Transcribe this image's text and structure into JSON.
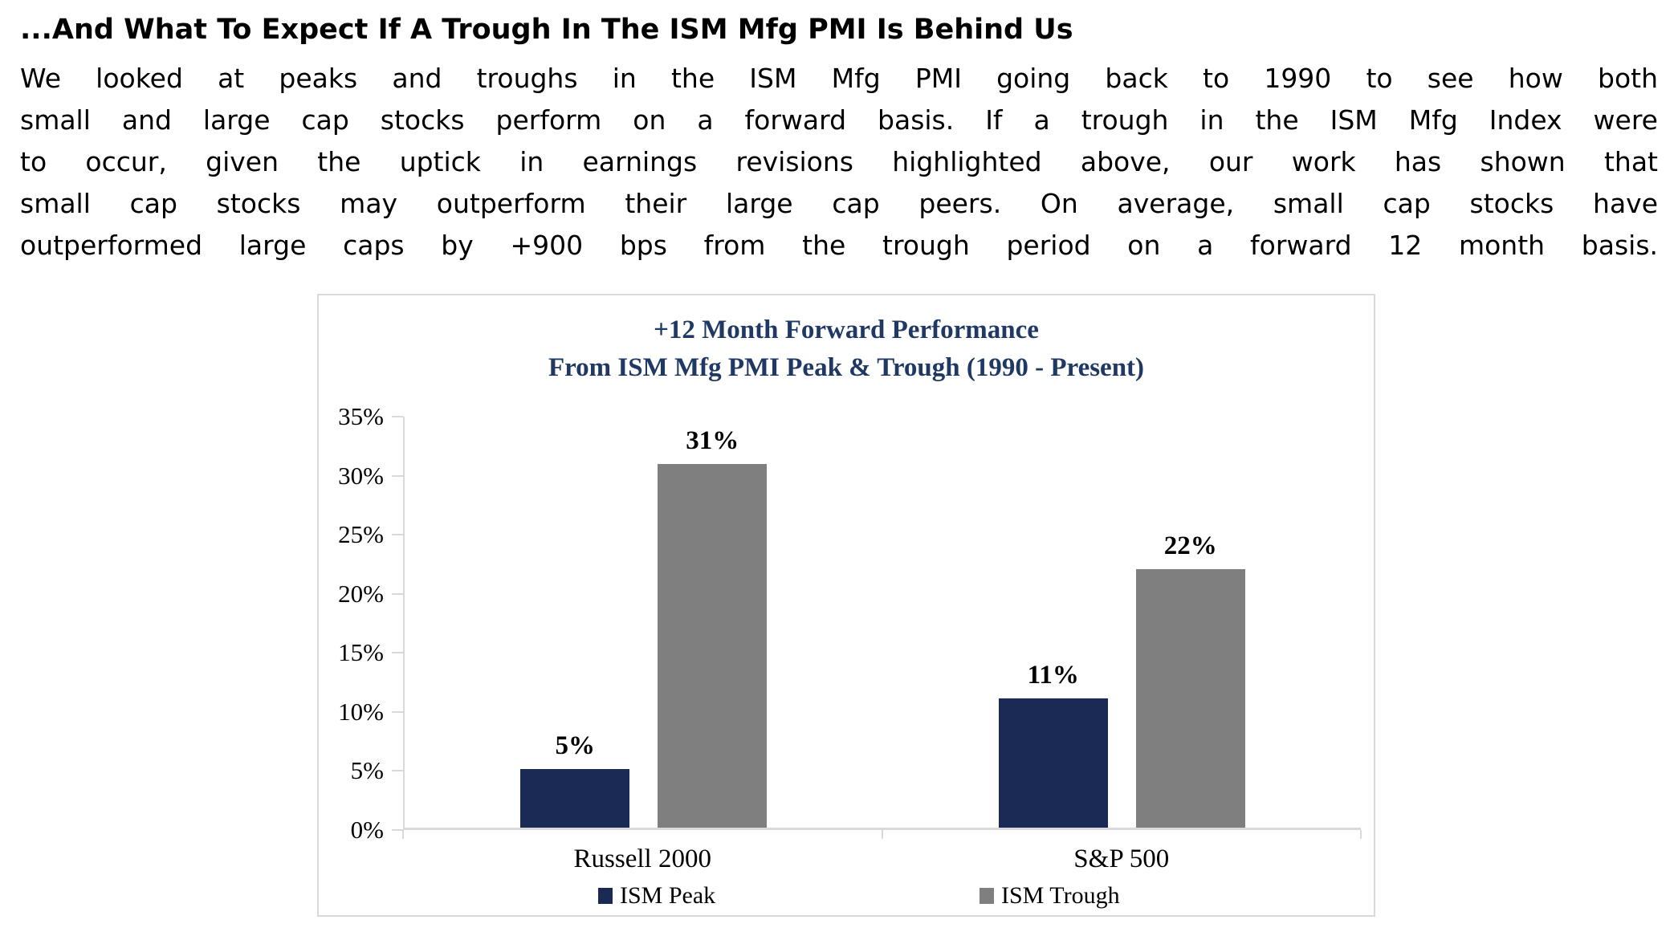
{
  "heading": "...And What To Expect If A Trough In The ISM Mfg PMI Is Behind Us",
  "paragraph_lines": [
    "We looked at peaks and troughs in the ISM Mfg PMI going back to 1990 to see how both",
    "small and large cap stocks perform on a forward basis. If a trough in the ISM Mfg Index were",
    "to occur, given the uptick in earnings revisions highlighted above, our work has shown that",
    "small cap stocks may outperform their large cap peers. On average, small cap stocks have",
    "outperformed large caps by +900 bps from the trough period on a forward 12 month basis."
  ],
  "chart_data": {
    "type": "bar",
    "title_line1": "+12 Month Forward Performance",
    "title_line2": "From ISM Mfg PMI Peak & Trough (1990 - Present)",
    "categories": [
      "Russell 2000",
      "S&P 500"
    ],
    "series": [
      {
        "name": "ISM Peak",
        "color": "#1b2a55",
        "values": [
          5,
          11
        ]
      },
      {
        "name": "ISM Trough",
        "color": "#7f7f7f",
        "values": [
          31,
          22
        ]
      }
    ],
    "unit": "%",
    "y_ticks": [
      "0%",
      "5%",
      "10%",
      "15%",
      "20%",
      "25%",
      "30%",
      "35%"
    ],
    "ylim": [
      0,
      35
    ],
    "grid": false,
    "legend_position": "bottom",
    "title_color": "#1f3864",
    "axis_color": "#d9d9d9",
    "label_color": "#000000"
  }
}
